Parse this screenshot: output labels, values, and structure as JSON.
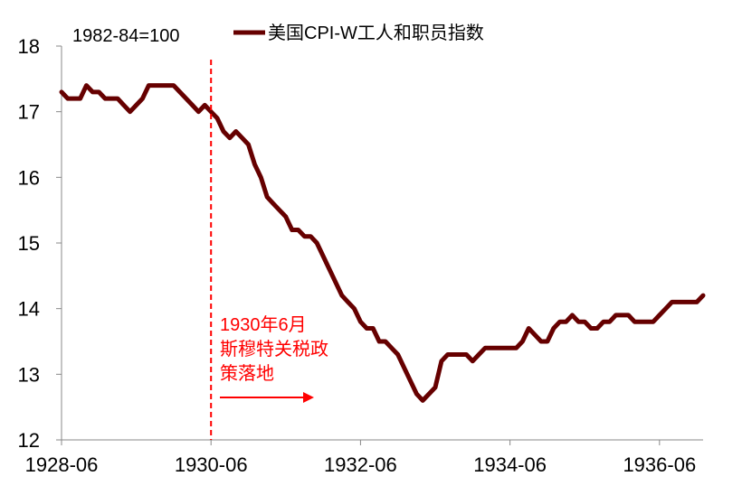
{
  "chart_data": {
    "type": "line",
    "unit_label": "1982-84=100",
    "series": [
      {
        "name": "美国CPI-W工人和职员指数",
        "color": "#660000",
        "points": [
          [
            "1928-06",
            17.3
          ],
          [
            "1928-07",
            17.2
          ],
          [
            "1928-08",
            17.2
          ],
          [
            "1928-09",
            17.2
          ],
          [
            "1928-10",
            17.4
          ],
          [
            "1928-11",
            17.3
          ],
          [
            "1928-12",
            17.3
          ],
          [
            "1929-01",
            17.2
          ],
          [
            "1929-02",
            17.2
          ],
          [
            "1929-03",
            17.2
          ],
          [
            "1929-04",
            17.1
          ],
          [
            "1929-05",
            17.0
          ],
          [
            "1929-06",
            17.1
          ],
          [
            "1929-07",
            17.2
          ],
          [
            "1929-08",
            17.4
          ],
          [
            "1929-09",
            17.4
          ],
          [
            "1929-10",
            17.4
          ],
          [
            "1929-11",
            17.4
          ],
          [
            "1929-12",
            17.4
          ],
          [
            "1930-01",
            17.3
          ],
          [
            "1930-02",
            17.2
          ],
          [
            "1930-03",
            17.1
          ],
          [
            "1930-04",
            17.0
          ],
          [
            "1930-05",
            17.1
          ],
          [
            "1930-06",
            17.0
          ],
          [
            "1930-07",
            16.9
          ],
          [
            "1930-08",
            16.7
          ],
          [
            "1930-09",
            16.6
          ],
          [
            "1930-10",
            16.7
          ],
          [
            "1930-11",
            16.6
          ],
          [
            "1930-12",
            16.5
          ],
          [
            "1931-01",
            16.2
          ],
          [
            "1931-02",
            16.0
          ],
          [
            "1931-03",
            15.7
          ],
          [
            "1931-04",
            15.6
          ],
          [
            "1931-05",
            15.5
          ],
          [
            "1931-06",
            15.4
          ],
          [
            "1931-07",
            15.2
          ],
          [
            "1931-08",
            15.2
          ],
          [
            "1931-09",
            15.1
          ],
          [
            "1931-10",
            15.1
          ],
          [
            "1931-11",
            15.0
          ],
          [
            "1931-12",
            14.8
          ],
          [
            "1932-01",
            14.6
          ],
          [
            "1932-02",
            14.4
          ],
          [
            "1932-03",
            14.2
          ],
          [
            "1932-04",
            14.1
          ],
          [
            "1932-05",
            14.0
          ],
          [
            "1932-06",
            13.8
          ],
          [
            "1932-07",
            13.7
          ],
          [
            "1932-08",
            13.7
          ],
          [
            "1932-09",
            13.5
          ],
          [
            "1932-10",
            13.5
          ],
          [
            "1932-11",
            13.4
          ],
          [
            "1932-12",
            13.3
          ],
          [
            "1933-01",
            13.1
          ],
          [
            "1933-02",
            12.9
          ],
          [
            "1933-03",
            12.7
          ],
          [
            "1933-04",
            12.6
          ],
          [
            "1933-05",
            12.7
          ],
          [
            "1933-06",
            12.8
          ],
          [
            "1933-07",
            13.2
          ],
          [
            "1933-08",
            13.3
          ],
          [
            "1933-09",
            13.3
          ],
          [
            "1933-10",
            13.3
          ],
          [
            "1933-11",
            13.3
          ],
          [
            "1933-12",
            13.2
          ],
          [
            "1934-01",
            13.3
          ],
          [
            "1934-02",
            13.4
          ],
          [
            "1934-03",
            13.4
          ],
          [
            "1934-04",
            13.4
          ],
          [
            "1934-05",
            13.4
          ],
          [
            "1934-06",
            13.4
          ],
          [
            "1934-07",
            13.4
          ],
          [
            "1934-08",
            13.5
          ],
          [
            "1934-09",
            13.7
          ],
          [
            "1934-10",
            13.6
          ],
          [
            "1934-11",
            13.5
          ],
          [
            "1934-12",
            13.5
          ],
          [
            "1935-01",
            13.7
          ],
          [
            "1935-02",
            13.8
          ],
          [
            "1935-03",
            13.8
          ],
          [
            "1935-04",
            13.9
          ],
          [
            "1935-05",
            13.8
          ],
          [
            "1935-06",
            13.8
          ],
          [
            "1935-07",
            13.7
          ],
          [
            "1935-08",
            13.7
          ],
          [
            "1935-09",
            13.8
          ],
          [
            "1935-10",
            13.8
          ],
          [
            "1935-11",
            13.9
          ],
          [
            "1935-12",
            13.9
          ],
          [
            "1936-01",
            13.9
          ],
          [
            "1936-02",
            13.8
          ],
          [
            "1936-03",
            13.8
          ],
          [
            "1936-04",
            13.8
          ],
          [
            "1936-05",
            13.8
          ],
          [
            "1936-06",
            13.9
          ],
          [
            "1936-07",
            14.0
          ],
          [
            "1936-08",
            14.1
          ],
          [
            "1936-09",
            14.1
          ],
          [
            "1936-10",
            14.1
          ],
          [
            "1936-11",
            14.1
          ],
          [
            "1936-12",
            14.1
          ],
          [
            "1937-01",
            14.2
          ]
        ]
      }
    ],
    "y_ticks": [
      12,
      13,
      14,
      15,
      16,
      17,
      18
    ],
    "ylim": [
      12,
      18
    ],
    "x_ticks": [
      "1928-06",
      "1930-06",
      "1932-06",
      "1934-06",
      "1936-06"
    ],
    "xlim": [
      "1928-06",
      "1937-01"
    ],
    "grid": false,
    "legend_position": "top-center",
    "annotation": {
      "lines": [
        "1930年6月",
        "斯穆特关税政",
        "策落地"
      ],
      "marker_x": "1930-06",
      "color": "#ff0000"
    }
  }
}
